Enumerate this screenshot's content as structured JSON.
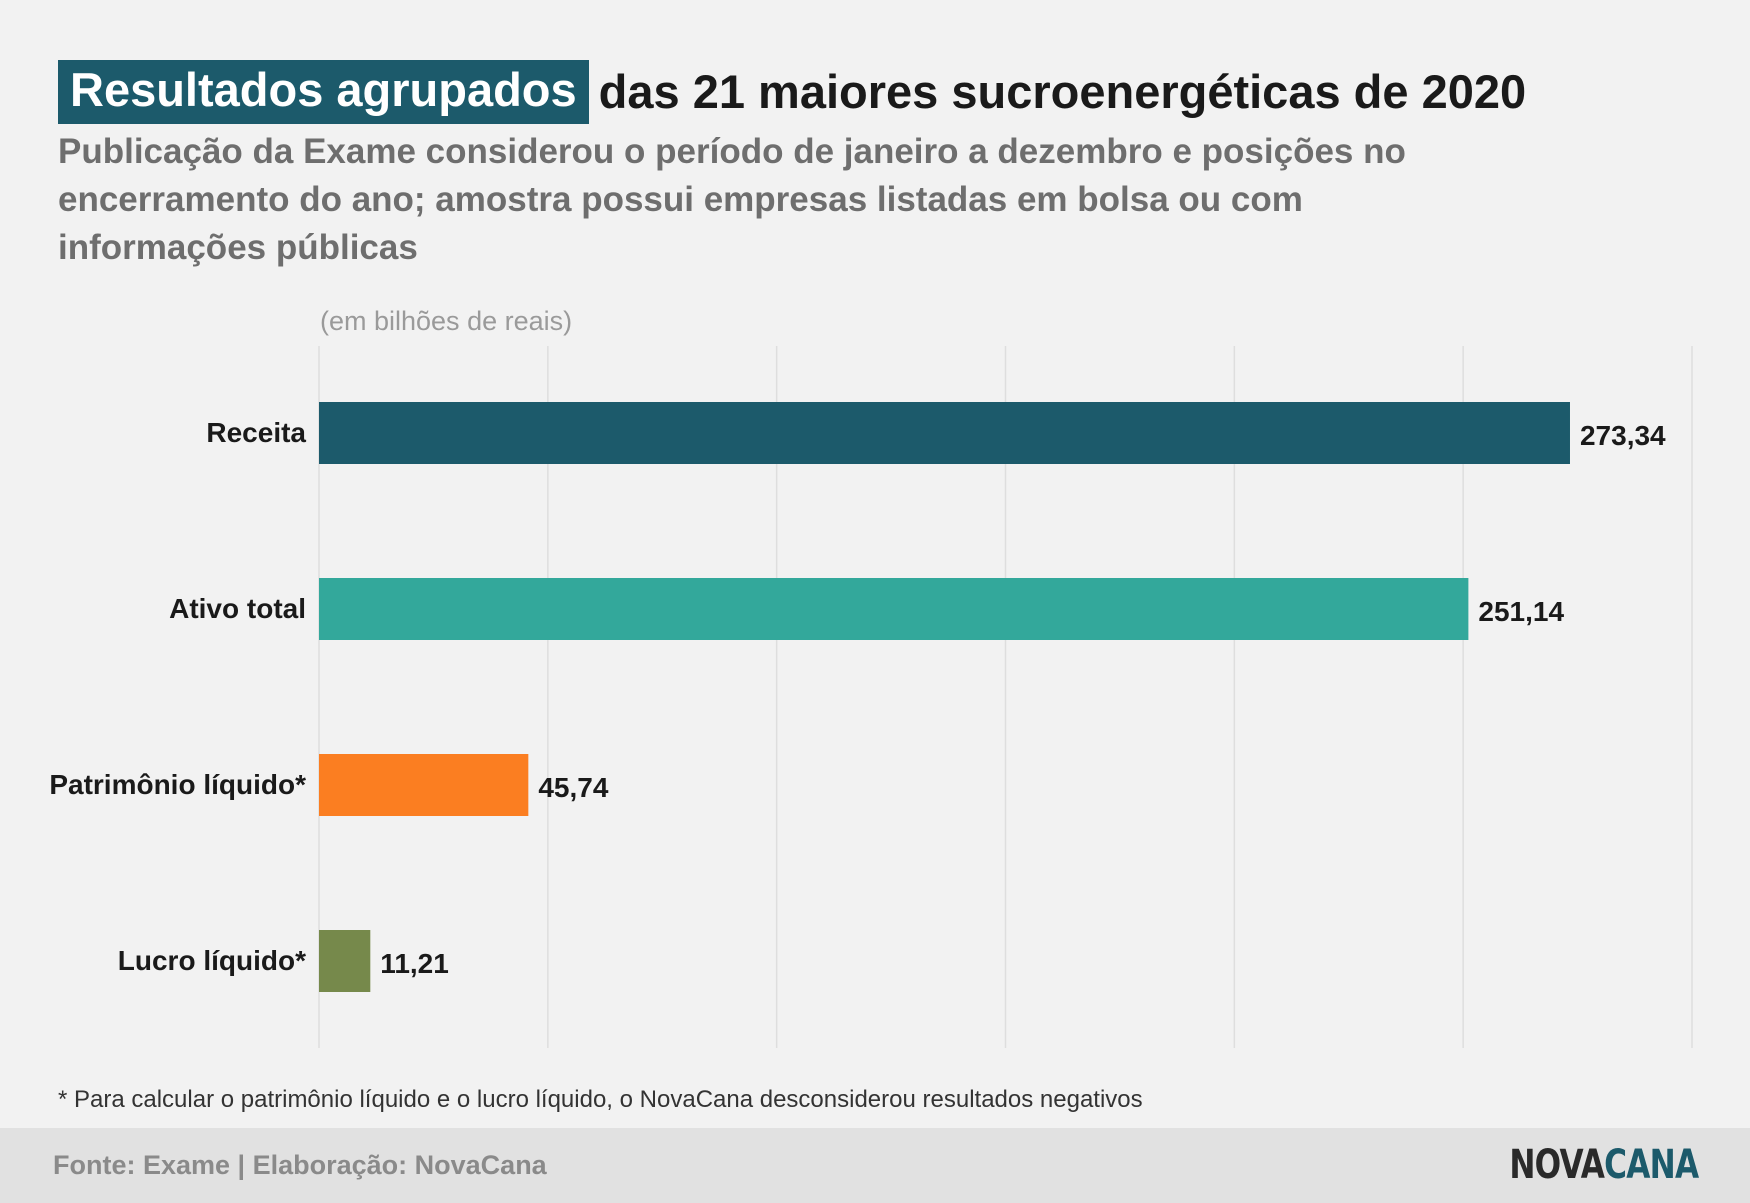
{
  "header": {
    "title_highlight": "Resultados agrupados",
    "title_rest": "das 21 maiores sucroenergéticas de 2020",
    "subtitle": "Publicação da Exame considerou o período de janeiro a dezembro e posições no encerramento do ano; amostra possui empresas listadas em bolsa ou com informações públicas"
  },
  "chart_data": {
    "type": "bar",
    "orientation": "horizontal",
    "unit_label": "(em bilhões de reais)",
    "categories": [
      "Receita",
      "Ativo total",
      "Patrimônio líquido*",
      "Lucro líquido*"
    ],
    "values": [
      273.34,
      251.14,
      45.74,
      11.21
    ],
    "value_labels": [
      "273,34",
      "251,14",
      "45,74",
      "11,21"
    ],
    "colors": [
      "#1c5a6b",
      "#33a89b",
      "#fb7e21",
      "#76894b"
    ],
    "xlim": [
      0,
      300
    ],
    "grid": true,
    "title": "",
    "xlabel": "",
    "ylabel": ""
  },
  "footnote": "* Para calcular o patrimônio líquido e o lucro líquido, o NovaCana desconsiderou resultados negativos",
  "footer": {
    "source": "Fonte: Exame | Elaboração: NovaCana",
    "logo_part1": "NOVA",
    "logo_part2": "CANA"
  }
}
